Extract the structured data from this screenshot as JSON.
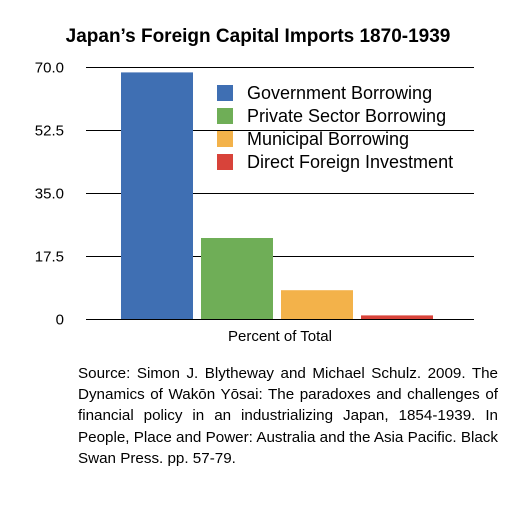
{
  "chart_data": {
    "type": "bar",
    "title": "Japan’s Foreign Capital Imports 1870-1939",
    "xlabel": "Percent of Total",
    "ylabel": "",
    "ylim": [
      0,
      70
    ],
    "yticks": [
      "70.0",
      "52.5",
      "35.0",
      "17.5",
      "0"
    ],
    "grid": true,
    "legend_position": "top-right",
    "series": [
      {
        "name": "Government Borrowing",
        "value": 68.5,
        "color": "#3f6fb3"
      },
      {
        "name": "Private Sector Borrowing",
        "value": 22.5,
        "color": "#6fae57"
      },
      {
        "name": "Municipal Borrowing",
        "value": 8.0,
        "color": "#f3b24a"
      },
      {
        "name": "Direct Foreign Investment",
        "value": 1.0,
        "color": "#d8433a"
      }
    ]
  },
  "source_text": "Source:   Simon J. Blytheway and Michael Schulz. 2009. The Dynamics of Wakōn Yōsai:  The paradoxes and challenges of financial policy in an industrializing Japan, 1854-1939.   In People, Place and Power: Australia and the Asia Pacific.  Black Swan Press.  pp. 57-79."
}
